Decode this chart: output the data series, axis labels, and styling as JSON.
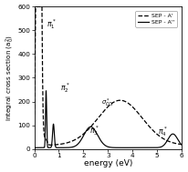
{
  "xlabel": "energy (eV)",
  "ylabel": "integral cross section (a$_0^2$)",
  "xlim": [
    0,
    6
  ],
  "ylim": [
    0,
    600
  ],
  "yticks": [
    0,
    100,
    200,
    300,
    400,
    500,
    600
  ],
  "xticks": [
    0,
    1,
    2,
    3,
    4,
    5,
    6
  ],
  "legend_entries": [
    "SEP - A'",
    "SEP - A''"
  ],
  "bg_color": "#ffffff"
}
